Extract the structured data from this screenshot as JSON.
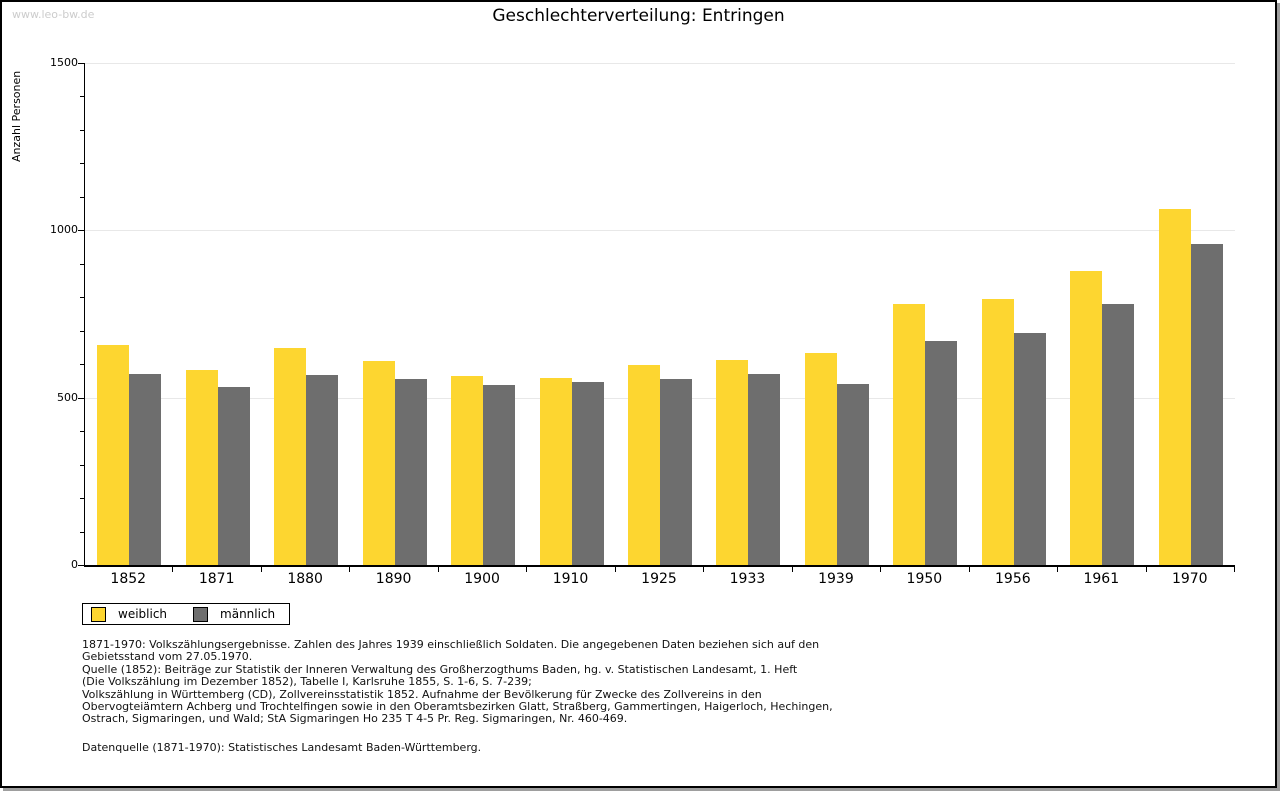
{
  "page": {
    "watermark": "www.leo-bw.de"
  },
  "title": "Geschlechterverteilung: Entringen",
  "chart_data": {
    "type": "bar",
    "title": "Geschlechterverteilung: Entringen",
    "ylabel": "Anzahl Personen",
    "xlabel": "",
    "ylim": [
      0,
      1500
    ],
    "ytick_major_step": 500,
    "ytick_minor_step": 100,
    "grid": true,
    "legend_position": "bottom-left",
    "categories": [
      "1852",
      "1871",
      "1880",
      "1890",
      "1900",
      "1910",
      "1925",
      "1933",
      "1939",
      "1950",
      "1956",
      "1961",
      "1970"
    ],
    "series": [
      {
        "name": "weiblich",
        "color": "#FDD630",
        "values": [
          658,
          584,
          649,
          610,
          566,
          558,
          599,
          614,
          634,
          781,
          796,
          878,
          1065
        ]
      },
      {
        "name": "männlich",
        "color": "#6E6E6E",
        "values": [
          572,
          532,
          569,
          557,
          538,
          546,
          557,
          570,
          541,
          669,
          693,
          781,
          958
        ]
      }
    ]
  },
  "legend": {
    "items": [
      {
        "label": "weiblich",
        "color": "#FDD630"
      },
      {
        "label": "männlich",
        "color": "#6E6E6E"
      }
    ]
  },
  "footnotes": {
    "lines": [
      "1871-1970: Volkszählungsergebnisse. Zahlen des Jahres 1939 einschließlich Soldaten. Die angegebenen Daten beziehen sich auf den",
      "Gebietsstand vom 27.05.1970.",
      "Quelle (1852): Beiträge zur Statistik der Inneren Verwaltung des Großherzogthums Baden, hg. v. Statistischen Landesamt, 1. Heft",
      "(Die Volkszählung im Dezember 1852), Tabelle I, Karlsruhe 1855, S. 1-6, S. 7-239;",
      "Volkszählung in Württemberg (CD), Zollvereinsstatistik 1852. Aufnahme der Bevölkerung für Zwecke des Zollvereins in den",
      "Obervogteiämtern Achberg und Trochtelfingen sowie in den Oberamtsbezirken Glatt, Straßberg, Gammertingen, Haigerloch, Hechingen,",
      "Ostrach, Sigmaringen, und Wald; StA Sigmaringen Ho 235 T 4-5 Pr. Reg. Sigmaringen, Nr. 460-469."
    ],
    "datasource": "Datenquelle (1871-1970): Statistisches Landesamt Baden-Württemberg."
  }
}
